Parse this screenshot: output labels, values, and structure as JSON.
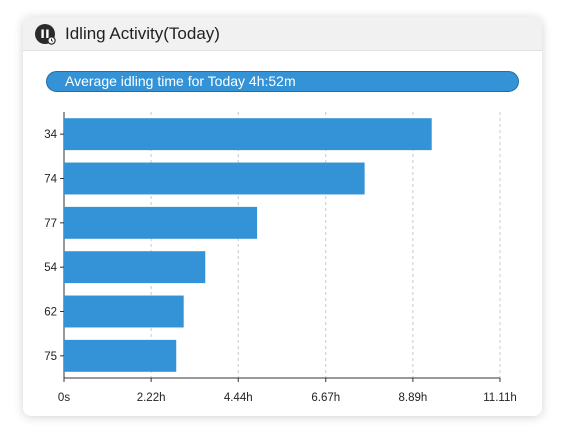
{
  "header": {
    "title": "Idling Activity(Today)",
    "icon": "pause-circle-icon"
  },
  "summary": {
    "label": "Average idling time for Today 4h:52m"
  },
  "colors": {
    "bar": "#3393d6",
    "header_bg": "#f1f1f1",
    "grid": "#c8c8c8"
  },
  "chart_data": {
    "type": "bar",
    "orientation": "horizontal",
    "categories": [
      "34",
      "74",
      "77",
      "54",
      "62",
      "75"
    ],
    "values_hours": [
      9.37,
      7.66,
      4.92,
      3.6,
      3.05,
      2.86
    ],
    "x_ticks": [
      "0s",
      "2.22h",
      "4.44h",
      "6.67h",
      "8.89h",
      "11.11h"
    ],
    "x_tick_values_hours": [
      0,
      2.22,
      4.44,
      6.67,
      8.89,
      11.11
    ],
    "xlim": [
      0,
      11.11
    ],
    "grid": true,
    "xlabel": "",
    "ylabel": ""
  }
}
